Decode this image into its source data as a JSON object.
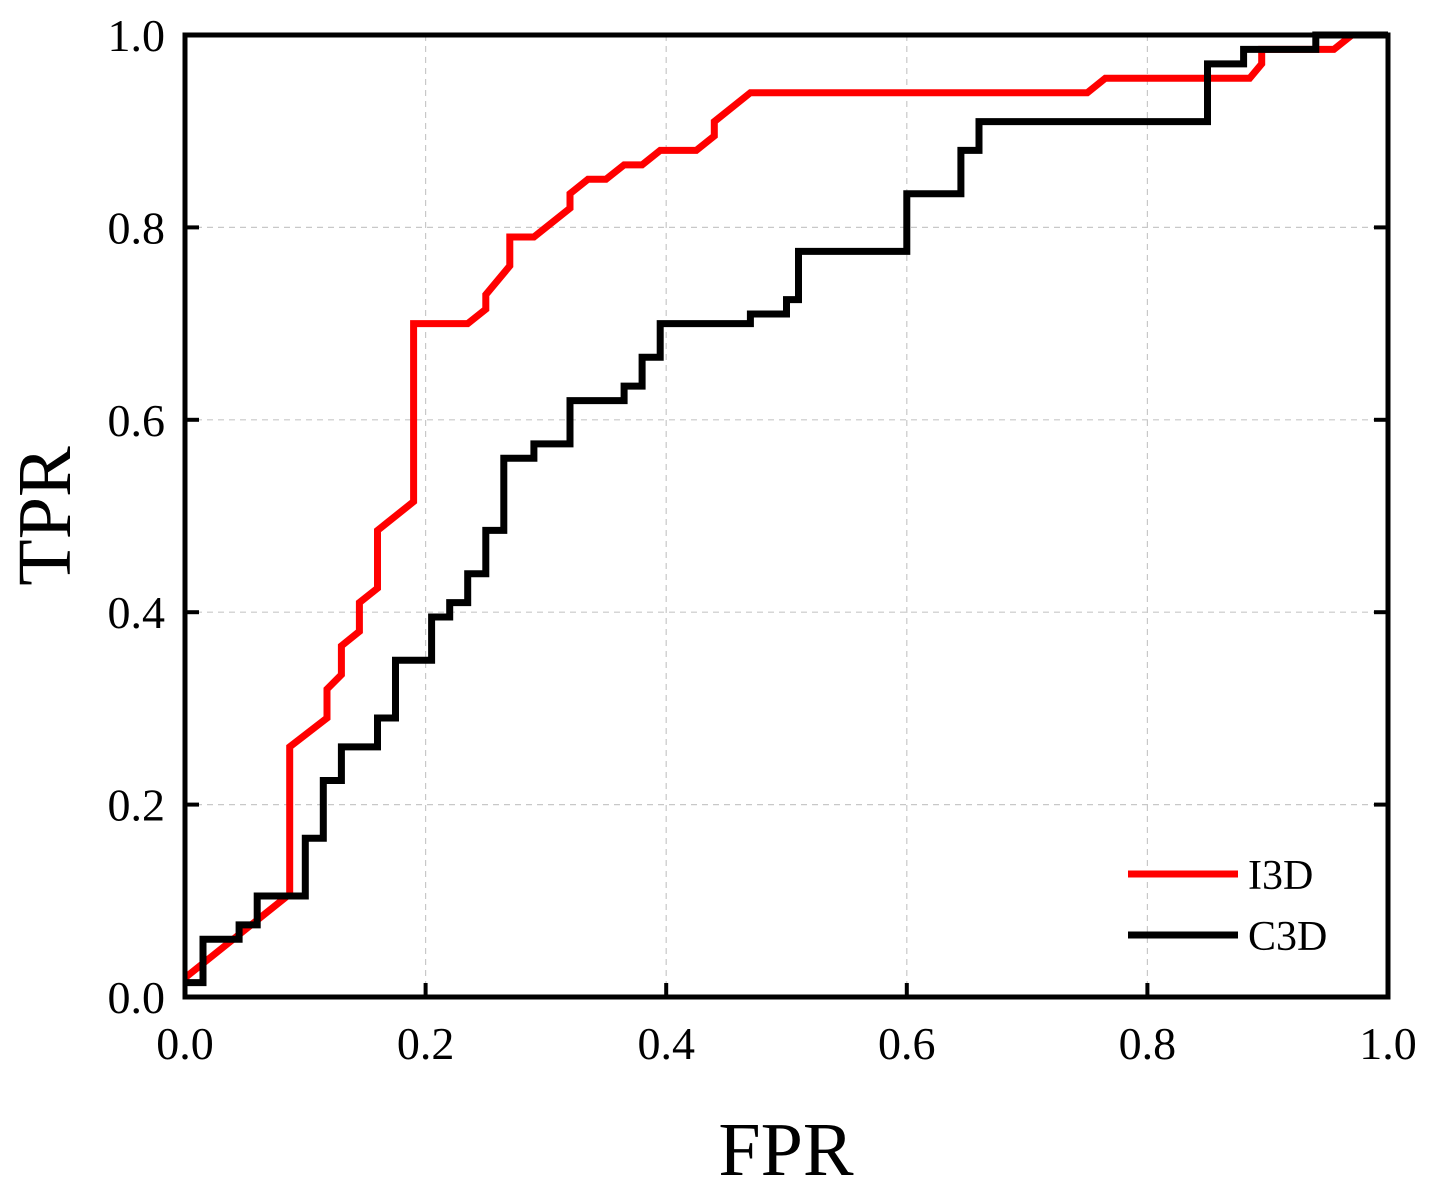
{
  "chart_data": {
    "type": "line",
    "title": "",
    "xlabel": "FPR",
    "ylabel": "TPR",
    "xlim": [
      0.0,
      1.0
    ],
    "ylim": [
      0.0,
      1.0
    ],
    "xticks": [
      "0.0",
      "0.2",
      "0.4",
      "0.6",
      "0.8",
      "1.0"
    ],
    "yticks": [
      "0.0",
      "0.2",
      "0.4",
      "0.6",
      "0.8",
      "1.0"
    ],
    "grid": true,
    "legend_position": "bottom-right",
    "series": [
      {
        "name": "I3D",
        "color": "#ff0000",
        "points": [
          [
            0.0,
            0.02
          ],
          [
            0.085,
            0.105
          ],
          [
            0.087,
            0.105
          ],
          [
            0.087,
            0.26
          ],
          [
            0.118,
            0.29
          ],
          [
            0.118,
            0.32
          ],
          [
            0.13,
            0.335
          ],
          [
            0.13,
            0.365
          ],
          [
            0.145,
            0.38
          ],
          [
            0.145,
            0.41
          ],
          [
            0.16,
            0.425
          ],
          [
            0.16,
            0.485
          ],
          [
            0.19,
            0.515
          ],
          [
            0.19,
            0.7
          ],
          [
            0.235,
            0.7
          ],
          [
            0.25,
            0.715
          ],
          [
            0.25,
            0.73
          ],
          [
            0.27,
            0.76
          ],
          [
            0.27,
            0.79
          ],
          [
            0.29,
            0.79
          ],
          [
            0.32,
            0.82
          ],
          [
            0.32,
            0.835
          ],
          [
            0.335,
            0.85
          ],
          [
            0.35,
            0.85
          ],
          [
            0.365,
            0.865
          ],
          [
            0.38,
            0.865
          ],
          [
            0.395,
            0.88
          ],
          [
            0.425,
            0.88
          ],
          [
            0.44,
            0.895
          ],
          [
            0.44,
            0.91
          ],
          [
            0.47,
            0.94
          ],
          [
            0.75,
            0.94
          ],
          [
            0.765,
            0.955
          ],
          [
            0.885,
            0.955
          ],
          [
            0.895,
            0.97
          ],
          [
            0.895,
            0.985
          ],
          [
            0.955,
            0.985
          ],
          [
            0.97,
            1.0
          ],
          [
            1.0,
            1.0
          ]
        ]
      },
      {
        "name": "C3D",
        "color": "#000000",
        "points": [
          [
            0.0,
            0.015
          ],
          [
            0.015,
            0.015
          ],
          [
            0.015,
            0.06
          ],
          [
            0.045,
            0.06
          ],
          [
            0.045,
            0.075
          ],
          [
            0.06,
            0.075
          ],
          [
            0.06,
            0.105
          ],
          [
            0.1,
            0.105
          ],
          [
            0.1,
            0.165
          ],
          [
            0.115,
            0.165
          ],
          [
            0.115,
            0.225
          ],
          [
            0.13,
            0.225
          ],
          [
            0.13,
            0.26
          ],
          [
            0.16,
            0.26
          ],
          [
            0.16,
            0.29
          ],
          [
            0.175,
            0.29
          ],
          [
            0.175,
            0.35
          ],
          [
            0.205,
            0.35
          ],
          [
            0.205,
            0.395
          ],
          [
            0.22,
            0.395
          ],
          [
            0.22,
            0.41
          ],
          [
            0.235,
            0.41
          ],
          [
            0.235,
            0.44
          ],
          [
            0.25,
            0.44
          ],
          [
            0.25,
            0.485
          ],
          [
            0.265,
            0.485
          ],
          [
            0.265,
            0.56
          ],
          [
            0.29,
            0.56
          ],
          [
            0.29,
            0.575
          ],
          [
            0.32,
            0.575
          ],
          [
            0.32,
            0.62
          ],
          [
            0.365,
            0.62
          ],
          [
            0.365,
            0.635
          ],
          [
            0.38,
            0.635
          ],
          [
            0.38,
            0.665
          ],
          [
            0.395,
            0.665
          ],
          [
            0.395,
            0.7
          ],
          [
            0.47,
            0.7
          ],
          [
            0.47,
            0.71
          ],
          [
            0.5,
            0.71
          ],
          [
            0.5,
            0.725
          ],
          [
            0.51,
            0.725
          ],
          [
            0.51,
            0.775
          ],
          [
            0.6,
            0.775
          ],
          [
            0.6,
            0.835
          ],
          [
            0.645,
            0.835
          ],
          [
            0.645,
            0.88
          ],
          [
            0.66,
            0.88
          ],
          [
            0.66,
            0.91
          ],
          [
            0.85,
            0.91
          ],
          [
            0.85,
            0.97
          ],
          [
            0.88,
            0.97
          ],
          [
            0.88,
            0.985
          ],
          [
            0.94,
            0.985
          ],
          [
            0.94,
            1.0
          ],
          [
            1.0,
            1.0
          ]
        ]
      }
    ]
  }
}
